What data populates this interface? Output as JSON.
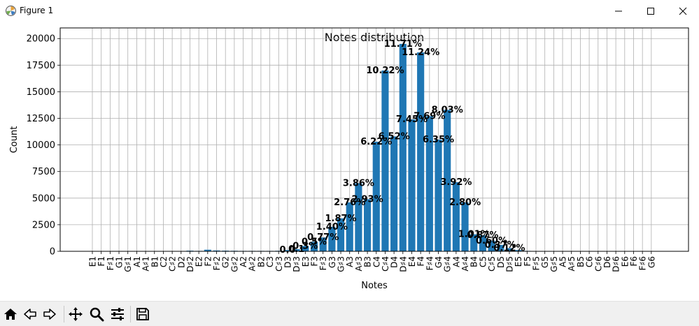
{
  "window": {
    "title": "Figure 1"
  },
  "toolbar": {
    "buttons": [
      "home-icon",
      "back-icon",
      "forward-icon",
      "pan-icon",
      "zoom-icon",
      "configure-subplots-icon",
      "save-icon"
    ]
  },
  "colors": {
    "bar": "#1f77b4",
    "grid": "#b0b0b0",
    "toolbar_bg": "#f0f0f0"
  },
  "chart_data": {
    "type": "bar",
    "title": "Notes distribution",
    "xlabel": "Notes",
    "ylabel": "Count",
    "ylim": [
      0,
      21000
    ],
    "yticks": [
      0,
      2500,
      5000,
      7500,
      10000,
      12500,
      15000,
      17500,
      20000
    ],
    "grid": true,
    "categories": [
      "E1",
      "F1",
      "F♯1",
      "G1",
      "G♯1",
      "A1",
      "A♯1",
      "B1",
      "C2",
      "C♯2",
      "D2",
      "D♯2",
      "E2",
      "F2",
      "F♯2",
      "G2",
      "G♯2",
      "A2",
      "A♯2",
      "B2",
      "C3",
      "C♯3",
      "D3",
      "D♯3",
      "E3",
      "F3",
      "F♯3",
      "G3",
      "G♯3",
      "A3",
      "A♯3",
      "B3",
      "C4",
      "C♯4",
      "D4",
      "D♯4",
      "E4",
      "F4",
      "F♯4",
      "G4",
      "G♯4",
      "A4",
      "A♯4",
      "B4",
      "C5",
      "C♯5",
      "D5",
      "D♯5",
      "E5",
      "F5",
      "F♯5",
      "G5",
      "G♯5",
      "A5",
      "A♯5",
      "B5",
      "C6",
      "C♯6",
      "D6",
      "D♯6",
      "E6",
      "F6",
      "F♯6",
      "G6"
    ],
    "values": [
      0,
      0,
      0,
      0,
      0,
      0,
      0,
      0,
      0,
      0,
      30,
      60,
      40,
      150,
      80,
      60,
      50,
      40,
      40,
      40,
      40,
      50,
      120,
      200,
      500,
      900,
      1300,
      2300,
      3100,
      4600,
      6400,
      4900,
      10300,
      17000,
      10800,
      19500,
      12400,
      18700,
      12700,
      10500,
      13300,
      6500,
      4600,
      1600,
      1500,
      1000,
      600,
      300,
      120,
      40,
      20,
      10,
      10,
      5,
      5,
      5,
      5,
      5,
      5,
      5,
      5,
      5,
      5,
      5
    ],
    "data_labels": [
      {
        "category": "D3",
        "text": "0.0"
      },
      {
        "category": "D♯3",
        "text": "0.1"
      },
      {
        "category": "E3",
        "text": "0.3%"
      },
      {
        "category": "F3",
        "text": "0.5%"
      },
      {
        "category": "F♯3",
        "text": "0.77%"
      },
      {
        "category": "G3",
        "text": "1.40%"
      },
      {
        "category": "G♯3",
        "text": "1.87%"
      },
      {
        "category": "A3",
        "text": "2.76%"
      },
      {
        "category": "A♯3",
        "text": "3.86%"
      },
      {
        "category": "B3",
        "text": "2.93%"
      },
      {
        "category": "C4",
        "text": "6.22%"
      },
      {
        "category": "C♯4",
        "text": "10.22%"
      },
      {
        "category": "D4",
        "text": "6.52%"
      },
      {
        "category": "D♯4",
        "text": "11.71%"
      },
      {
        "category": "E4",
        "text": "7.45%"
      },
      {
        "category": "F4",
        "text": "11.24%"
      },
      {
        "category": "F♯4",
        "text": "7.69%"
      },
      {
        "category": "G4",
        "text": "6.35%"
      },
      {
        "category": "G♯4",
        "text": "8.03%"
      },
      {
        "category": "A4",
        "text": "3.92%"
      },
      {
        "category": "A♯4",
        "text": "2.80%"
      },
      {
        "category": "B4",
        "text": "1.01%"
      },
      {
        "category": "C5",
        "text": "0.87%"
      },
      {
        "category": "C♯5",
        "text": "0.60%"
      },
      {
        "category": "D5",
        "text": "0.37%"
      },
      {
        "category": "D♯5",
        "text": "0.12%"
      }
    ]
  }
}
